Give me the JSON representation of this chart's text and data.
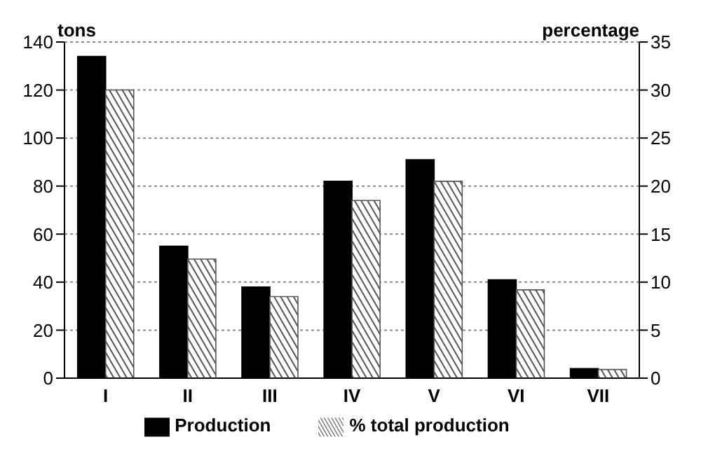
{
  "chart_data": {
    "type": "bar",
    "categories": [
      "I",
      "II",
      "III",
      "IV",
      "V",
      "VI",
      "VII"
    ],
    "ylabel": "tons",
    "y2label": "percentage",
    "series": [
      {
        "name": "Production",
        "color": "#000000",
        "values": [
          134,
          55,
          38,
          82,
          91,
          41,
          4
        ]
      },
      {
        "name": "% total production",
        "color": "#555555",
        "axis": "y2",
        "values": [
          30,
          12.4,
          8.5,
          18.5,
          20.5,
          9.2,
          0.9
        ]
      }
    ],
    "ylim": [
      0,
      140
    ],
    "yticks": [
      0,
      20,
      40,
      60,
      80,
      100,
      120,
      140
    ],
    "y2lim": [
      0,
      35
    ],
    "y2ticks": [
      0,
      5,
      10,
      15,
      20,
      25,
      30,
      35
    ],
    "grid": "y",
    "legend": "bottom"
  }
}
